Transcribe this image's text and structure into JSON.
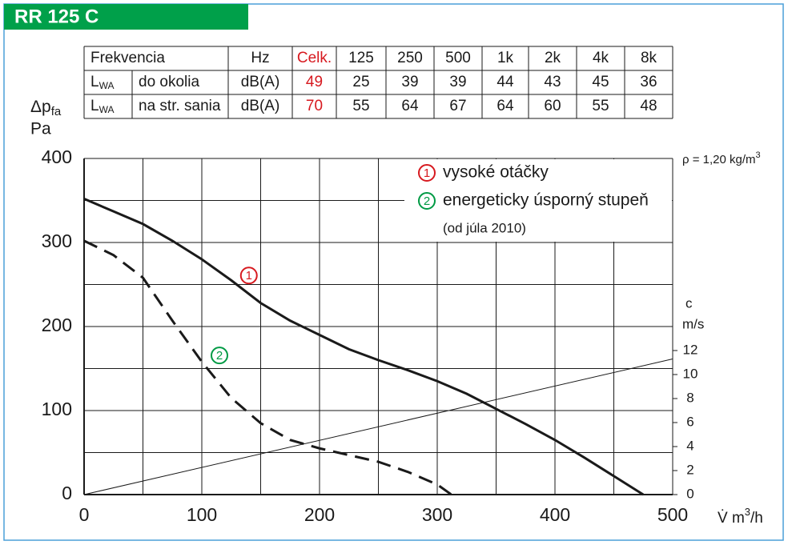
{
  "chart_data": {
    "type": "line",
    "title": "RR 125 C",
    "y_label": {
      "symbol": "Δp",
      "sub": "fa",
      "unit": "Pa"
    },
    "x_label": {
      "main": "V̇ m",
      "sup": "3",
      "tail": "/h"
    },
    "y2_label": {
      "symbol": "c",
      "unit": "m/s"
    },
    "density": {
      "text": "ρ = 1,20 kg/m",
      "sup": "3"
    },
    "xlim": [
      0,
      500
    ],
    "xticks": [
      0,
      100,
      200,
      300,
      400,
      500
    ],
    "ylim": [
      0,
      400
    ],
    "yticks": [
      0,
      100,
      200,
      300,
      400
    ],
    "x_grid": [
      0,
      50,
      100,
      150,
      200,
      250,
      300,
      350,
      400,
      450,
      500
    ],
    "y_grid": [
      0,
      50,
      100,
      150,
      200,
      250,
      300,
      350,
      400
    ],
    "y2lim": [
      0,
      28
    ],
    "y2ticks": [
      0,
      2,
      4,
      6,
      8,
      10,
      12
    ],
    "series": [
      {
        "name": "vysoké otáčky",
        "marker": "1",
        "marker_color": "#d7191f",
        "color": "#1a1a1a",
        "dash": false,
        "x": [
          0,
          25,
          50,
          75,
          100,
          125,
          150,
          175,
          200,
          225,
          250,
          275,
          300,
          325,
          350,
          375,
          400,
          425,
          450,
          475
        ],
        "values": [
          352,
          337,
          322,
          302,
          280,
          255,
          228,
          207,
          190,
          173,
          160,
          148,
          135,
          120,
          102,
          84,
          65,
          44,
          22,
          0
        ]
      },
      {
        "name": "energeticky úsporný stupeň",
        "note": "(od júla 2010)",
        "marker": "2",
        "marker_color": "#009a44",
        "color": "#1a1a1a",
        "dash": true,
        "x": [
          0,
          25,
          50,
          75,
          100,
          125,
          150,
          175,
          200,
          225,
          250,
          275,
          300,
          312
        ],
        "values": [
          302,
          285,
          258,
          207,
          158,
          115,
          85,
          65,
          55,
          47,
          39,
          27,
          12,
          0
        ]
      },
      {
        "axis": "y2",
        "color": "#1a1a1a",
        "x": [
          0,
          500
        ],
        "values": [
          0,
          11.3
        ]
      }
    ]
  },
  "table": {
    "header": [
      "Frekvencia",
      "Hz",
      "Celk.",
      "125",
      "250",
      "500",
      "1k",
      "2k",
      "4k",
      "8k"
    ],
    "rows": [
      {
        "symbol": "L",
        "sub": "WA",
        "label": "do okolia",
        "unit": "dB(A)",
        "values": [
          49,
          25,
          39,
          39,
          44,
          43,
          45,
          36
        ]
      },
      {
        "symbol": "L",
        "sub": "WA",
        "label": "na str. sania",
        "unit": "dB(A)",
        "values": [
          70,
          55,
          64,
          67,
          64,
          60,
          55,
          48
        ]
      }
    ]
  }
}
